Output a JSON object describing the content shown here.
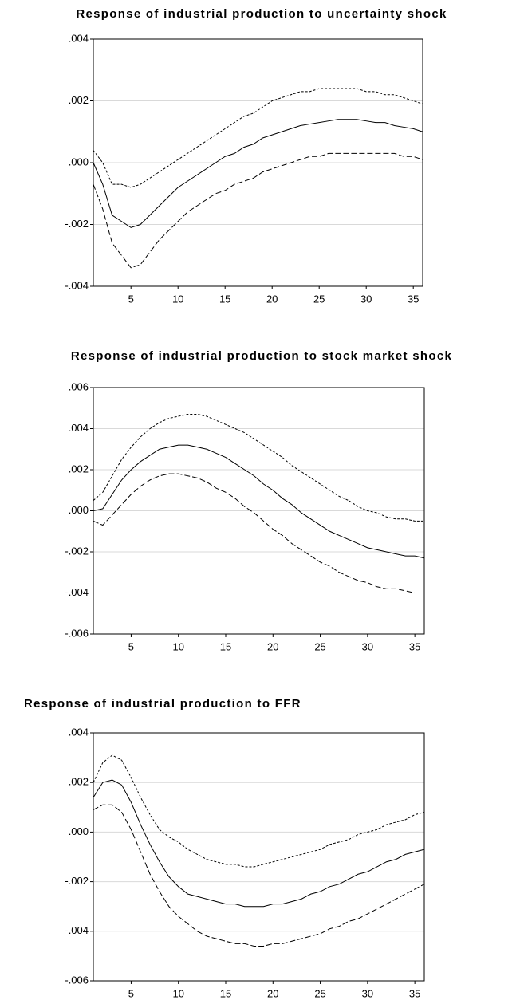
{
  "chart_data": [
    {
      "type": "line",
      "title": "Response of industrial production to uncertainty shock",
      "x": [
        1,
        2,
        3,
        4,
        5,
        6,
        7,
        8,
        9,
        10,
        11,
        12,
        13,
        14,
        15,
        16,
        17,
        18,
        19,
        20,
        21,
        22,
        23,
        24,
        25,
        26,
        27,
        28,
        29,
        30,
        31,
        32,
        33,
        34,
        35,
        36
      ],
      "xlim": [
        1,
        36
      ],
      "xticks": [
        5,
        10,
        15,
        20,
        25,
        30,
        35
      ],
      "ylim": [
        -0.004,
        0.004
      ],
      "yticks": [
        {
          "value": -0.004,
          "label": "-.004"
        },
        {
          "value": -0.002,
          "label": "-.002"
        },
        {
          "value": 0,
          "label": ".000"
        },
        {
          "value": 0.002,
          "label": ".002"
        },
        {
          "value": 0.004,
          "label": ".004"
        }
      ],
      "grid": true,
      "series": [
        {
          "color": "#000000",
          "line_style": "solid",
          "values": [
            0,
            -0.0007,
            -0.0017,
            -0.0019,
            -0.0021,
            -0.002,
            -0.0017,
            -0.0014,
            -0.0011,
            -0.0008,
            -0.0006,
            -0.0004,
            -0.0002,
            0,
            0.0002,
            0.0003,
            0.0005,
            0.0006,
            0.0008,
            0.0009,
            0.001,
            0.0011,
            0.0012,
            0.00125,
            0.0013,
            0.00135,
            0.0014,
            0.0014,
            0.0014,
            0.00135,
            0.0013,
            0.0013,
            0.0012,
            0.00115,
            0.0011,
            0.001
          ]
        },
        {
          "color": "#000000",
          "line_style": "short-dash",
          "values": [
            0.0004,
            0,
            -0.0007,
            -0.0007,
            -0.0008,
            -0.0007,
            -0.0005,
            -0.0003,
            -0.0001,
            0.0001,
            0.0003,
            0.0005,
            0.0007,
            0.0009,
            0.0011,
            0.0013,
            0.0015,
            0.0016,
            0.0018,
            0.002,
            0.0021,
            0.0022,
            0.0023,
            0.0023,
            0.0024,
            0.0024,
            0.0024,
            0.0024,
            0.0024,
            0.0023,
            0.0023,
            0.0022,
            0.0022,
            0.0021,
            0.002,
            0.0019
          ]
        },
        {
          "color": "#000000",
          "line_style": "long-dash",
          "values": [
            -0.0007,
            -0.0015,
            -0.0026,
            -0.003,
            -0.0034,
            -0.0033,
            -0.0029,
            -0.0025,
            -0.0022,
            -0.0019,
            -0.0016,
            -0.0014,
            -0.0012,
            -0.001,
            -0.0009,
            -0.0007,
            -0.0006,
            -0.0005,
            -0.0003,
            -0.0002,
            -0.0001,
            0,
            0.0001,
            0.0002,
            0.0002,
            0.0003,
            0.0003,
            0.0003,
            0.0003,
            0.0003,
            0.0003,
            0.0003,
            0.0003,
            0.0002,
            0.0002,
            0.0001
          ]
        }
      ]
    },
    {
      "type": "line",
      "title": "Response of industrial production to stock market shock",
      "x": [
        1,
        2,
        3,
        4,
        5,
        6,
        7,
        8,
        9,
        10,
        11,
        12,
        13,
        14,
        15,
        16,
        17,
        18,
        19,
        20,
        21,
        22,
        23,
        24,
        25,
        26,
        27,
        28,
        29,
        30,
        31,
        32,
        33,
        34,
        35,
        36
      ],
      "xlim": [
        1,
        36
      ],
      "xticks": [
        5,
        10,
        15,
        20,
        25,
        30,
        35
      ],
      "ylim": [
        -0.006,
        0.006
      ],
      "yticks": [
        {
          "value": -0.006,
          "label": "-.006"
        },
        {
          "value": -0.004,
          "label": "-.004"
        },
        {
          "value": -0.002,
          "label": "-.002"
        },
        {
          "value": 0,
          "label": ".000"
        },
        {
          "value": 0.002,
          "label": ".002"
        },
        {
          "value": 0.004,
          "label": ".004"
        },
        {
          "value": 0.006,
          "label": ".006"
        }
      ],
      "grid": true,
      "series": [
        {
          "color": "#000000",
          "line_style": "solid",
          "values": [
            0,
            0.0001,
            0.0008,
            0.0015,
            0.002,
            0.0024,
            0.0027,
            0.003,
            0.0031,
            0.0032,
            0.0032,
            0.0031,
            0.003,
            0.0028,
            0.0026,
            0.0023,
            0.002,
            0.0017,
            0.0013,
            0.001,
            0.0006,
            0.0003,
            -0.0001,
            -0.0004,
            -0.0007,
            -0.001,
            -0.0012,
            -0.0014,
            -0.0016,
            -0.0018,
            -0.0019,
            -0.002,
            -0.0021,
            -0.0022,
            -0.0022,
            -0.0023
          ]
        },
        {
          "color": "#000000",
          "line_style": "short-dash",
          "values": [
            0.0005,
            0.0009,
            0.0017,
            0.0025,
            0.0031,
            0.0036,
            0.004,
            0.0043,
            0.0045,
            0.0046,
            0.0047,
            0.0047,
            0.0046,
            0.0044,
            0.0042,
            0.004,
            0.0038,
            0.0035,
            0.0032,
            0.0029,
            0.0026,
            0.0022,
            0.0019,
            0.0016,
            0.0013,
            0.001,
            0.0007,
            0.0005,
            0.0002,
            0,
            -0.0001,
            -0.0003,
            -0.0004,
            -0.0004,
            -0.0005,
            -0.0005
          ]
        },
        {
          "color": "#000000",
          "line_style": "long-dash",
          "values": [
            -0.0005,
            -0.0007,
            -0.0002,
            0.0003,
            0.0008,
            0.0012,
            0.0015,
            0.0017,
            0.0018,
            0.0018,
            0.0017,
            0.0016,
            0.0014,
            0.0011,
            0.0009,
            0.0006,
            0.0002,
            -0.0001,
            -0.0005,
            -0.0009,
            -0.0012,
            -0.0016,
            -0.0019,
            -0.0022,
            -0.0025,
            -0.0027,
            -0.003,
            -0.0032,
            -0.0034,
            -0.0035,
            -0.0037,
            -0.0038,
            -0.0038,
            -0.0039,
            -0.004,
            -0.004
          ]
        }
      ]
    },
    {
      "type": "line",
      "title": "Response of industrial production to FFR",
      "x": [
        1,
        2,
        3,
        4,
        5,
        6,
        7,
        8,
        9,
        10,
        11,
        12,
        13,
        14,
        15,
        16,
        17,
        18,
        19,
        20,
        21,
        22,
        23,
        24,
        25,
        26,
        27,
        28,
        29,
        30,
        31,
        32,
        33,
        34,
        35,
        36
      ],
      "xlim": [
        1,
        36
      ],
      "xticks": [
        5,
        10,
        15,
        20,
        25,
        30,
        35
      ],
      "ylim": [
        -0.006,
        0.004
      ],
      "yticks": [
        {
          "value": -0.006,
          "label": "-.006"
        },
        {
          "value": -0.004,
          "label": "-.004"
        },
        {
          "value": -0.002,
          "label": "-.002"
        },
        {
          "value": 0,
          "label": ".000"
        },
        {
          "value": 0.002,
          "label": ".002"
        },
        {
          "value": 0.004,
          "label": ".004"
        }
      ],
      "grid": true,
      "series": [
        {
          "color": "#000000",
          "line_style": "solid",
          "values": [
            0.0014,
            0.002,
            0.0021,
            0.0019,
            0.0012,
            0.0003,
            -0.0005,
            -0.0012,
            -0.0018,
            -0.0022,
            -0.0025,
            -0.0026,
            -0.0027,
            -0.0028,
            -0.0029,
            -0.0029,
            -0.003,
            -0.003,
            -0.003,
            -0.0029,
            -0.0029,
            -0.0028,
            -0.0027,
            -0.0025,
            -0.0024,
            -0.0022,
            -0.0021,
            -0.0019,
            -0.0017,
            -0.0016,
            -0.0014,
            -0.0012,
            -0.0011,
            -0.0009,
            -0.0008,
            -0.0007
          ]
        },
        {
          "color": "#000000",
          "line_style": "short-dash",
          "values": [
            0.002,
            0.0028,
            0.0031,
            0.0029,
            0.0022,
            0.0014,
            0.0007,
            0.0001,
            -0.0002,
            -0.0004,
            -0.0007,
            -0.0009,
            -0.0011,
            -0.0012,
            -0.0013,
            -0.0013,
            -0.0014,
            -0.0014,
            -0.0013,
            -0.0012,
            -0.0011,
            -0.001,
            -0.0009,
            -0.0008,
            -0.0007,
            -0.0005,
            -0.0004,
            -0.0003,
            -0.0001,
            0,
            0.0001,
            0.0003,
            0.0004,
            0.0005,
            0.0007,
            0.0008
          ]
        },
        {
          "color": "#000000",
          "line_style": "long-dash",
          "values": [
            0.0009,
            0.0011,
            0.0011,
            0.0008,
            0.0001,
            -0.0008,
            -0.0017,
            -0.0024,
            -0.003,
            -0.0034,
            -0.0037,
            -0.004,
            -0.0042,
            -0.0043,
            -0.0044,
            -0.0045,
            -0.0045,
            -0.0046,
            -0.0046,
            -0.0045,
            -0.0045,
            -0.0044,
            -0.0043,
            -0.0042,
            -0.0041,
            -0.0039,
            -0.0038,
            -0.0036,
            -0.0035,
            -0.0033,
            -0.0031,
            -0.0029,
            -0.0027,
            -0.0025,
            -0.0023,
            -0.0021
          ]
        }
      ]
    }
  ]
}
